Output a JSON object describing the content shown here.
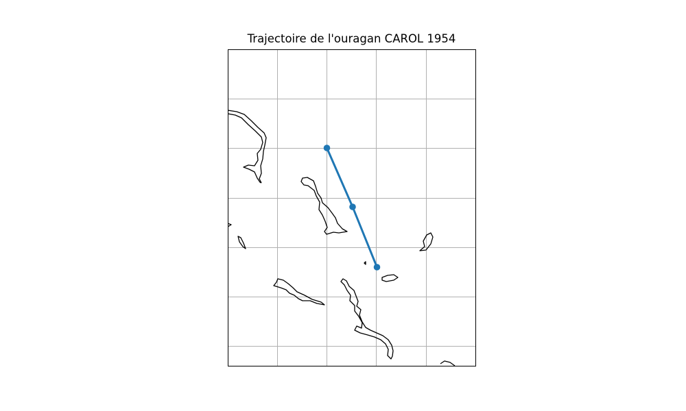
{
  "map": {
    "title": "Trajectoire de l'ouragan CAROL 1954",
    "track_color": "#1f77b4",
    "coast_color": "#000000",
    "grid_color": "#b0b0b0",
    "gridlines": true,
    "track_points": 3
  }
}
